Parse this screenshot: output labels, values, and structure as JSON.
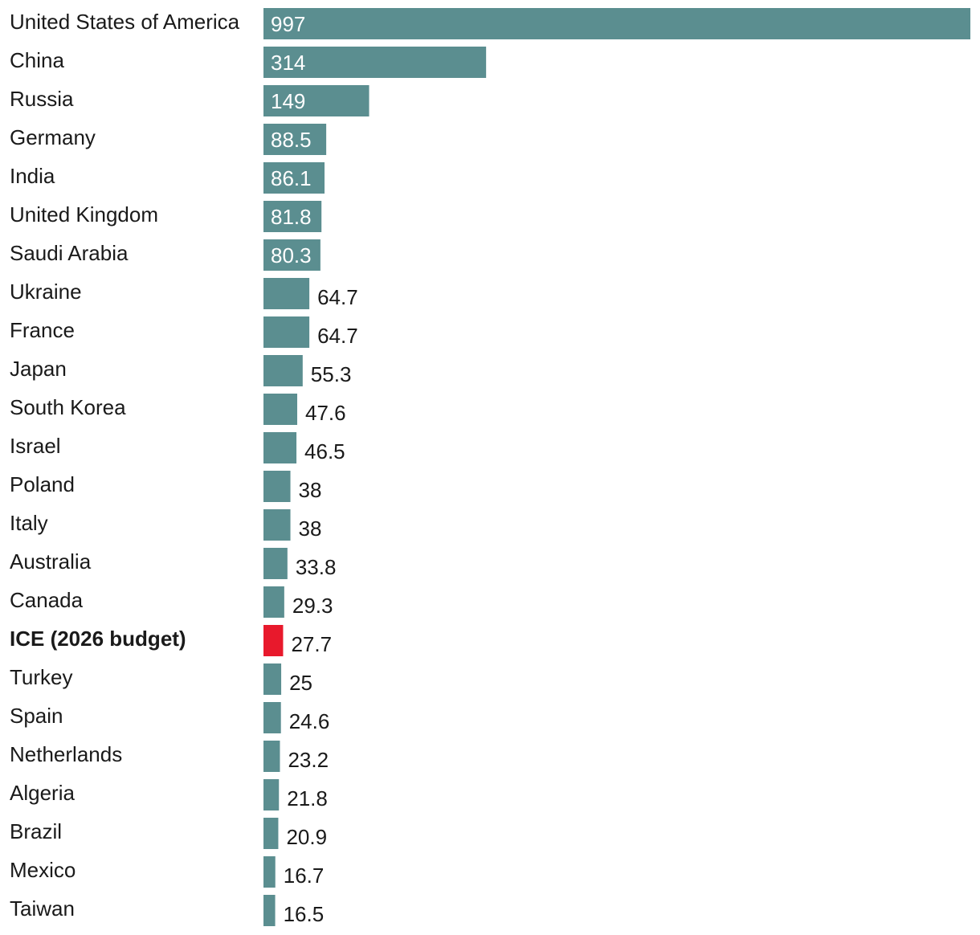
{
  "chart_data": {
    "type": "bar",
    "orientation": "horizontal",
    "title": "",
    "xlabel": "",
    "ylabel": "",
    "grid": false,
    "xlim": [
      0,
      997
    ],
    "bar_color": "#5b8e90",
    "highlight_color": "#e8192c",
    "highlight_category": "ICE (2026 budget)",
    "categories": [
      "United States of America",
      "China",
      "Russia",
      "Germany",
      "India",
      "United Kingdom",
      "Saudi Arabia",
      "Ukraine",
      "France",
      "Japan",
      "South Korea",
      "Israel",
      "Poland",
      "Italy",
      "Australia",
      "Canada",
      "ICE (2026 budget)",
      "Turkey",
      "Spain",
      "Netherlands",
      "Algeria",
      "Brazil",
      "Mexico",
      "Taiwan"
    ],
    "values": [
      997,
      314,
      149,
      88.5,
      86.1,
      81.8,
      80.3,
      64.7,
      64.7,
      55.3,
      47.6,
      46.5,
      38,
      38,
      33.8,
      29.3,
      27.7,
      25,
      24.6,
      23.2,
      21.8,
      20.9,
      16.7,
      16.5
    ]
  }
}
